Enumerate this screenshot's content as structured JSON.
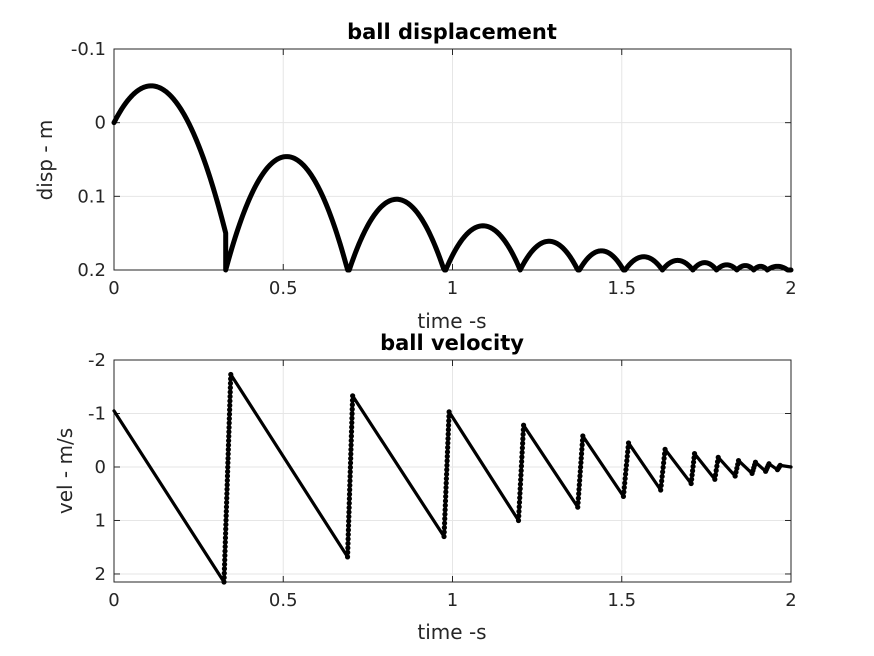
{
  "chart_data": [
    {
      "type": "line",
      "title": "ball displacement",
      "xlabel": "time -s",
      "ylabel": "disp - m",
      "xlim": [
        0,
        2
      ],
      "ylim": [
        -0.1,
        0.2
      ],
      "y_direction": "reversed",
      "grid": true,
      "marker": "dot",
      "color": "#000000",
      "xticks": [
        0,
        0.5,
        1,
        1.5,
        2
      ],
      "xtick_labels": [
        "0",
        "0.5",
        "1",
        "1.5",
        "2"
      ],
      "yticks": [
        -0.1,
        0,
        0.1,
        0.2
      ],
      "ytick_labels": [
        "-0.1",
        "0",
        "0.1",
        "0.2"
      ],
      "bounces": [
        {
          "t0": 0.0,
          "t1": 0.33,
          "y0": 0.0,
          "apex_t": 0.11,
          "apex_y": -0.05
        },
        {
          "t0": 0.33,
          "t1": 0.695,
          "y0": 0.2,
          "apex_t": 0.51,
          "apex_y": 0.046
        },
        {
          "t0": 0.695,
          "t1": 0.98,
          "y0": 0.2,
          "apex_t": 0.835,
          "apex_y": 0.104
        },
        {
          "t0": 0.98,
          "t1": 1.2,
          "y0": 0.2,
          "apex_t": 1.09,
          "apex_y": 0.14
        },
        {
          "t0": 1.2,
          "t1": 1.375,
          "y0": 0.2,
          "apex_t": 1.285,
          "apex_y": 0.161
        },
        {
          "t0": 1.375,
          "t1": 1.51,
          "y0": 0.2,
          "apex_t": 1.44,
          "apex_y": 0.174
        },
        {
          "t0": 1.51,
          "t1": 1.62,
          "y0": 0.2,
          "apex_t": 1.565,
          "apex_y": 0.182
        },
        {
          "t0": 1.62,
          "t1": 1.71,
          "y0": 0.2,
          "apex_t": 1.665,
          "apex_y": 0.187
        },
        {
          "t0": 1.71,
          "t1": 1.78,
          "y0": 0.2,
          "apex_t": 1.745,
          "apex_y": 0.19
        },
        {
          "t0": 1.78,
          "t1": 1.84,
          "y0": 0.2,
          "apex_t": 1.81,
          "apex_y": 0.193
        },
        {
          "t0": 1.84,
          "t1": 1.89,
          "y0": 0.2,
          "apex_t": 1.865,
          "apex_y": 0.194
        },
        {
          "t0": 1.89,
          "t1": 1.93,
          "y0": 0.2,
          "apex_t": 1.91,
          "apex_y": 0.195
        },
        {
          "t0": 1.93,
          "t1": 2.0,
          "y0": 0.2,
          "apex_t": 1.96,
          "apex_y": 0.195
        }
      ]
    },
    {
      "type": "line",
      "title": "ball velocity",
      "xlabel": "time -s",
      "ylabel": "vel - m/s",
      "xlim": [
        0,
        2
      ],
      "ylim": [
        -2,
        2.15
      ],
      "y_direction": "reversed",
      "grid": true,
      "marker": "dot",
      "color": "#000000",
      "xticks": [
        0,
        0.5,
        1,
        1.5,
        2
      ],
      "xtick_labels": [
        "0",
        "0.5",
        "1",
        "1.5",
        "2"
      ],
      "yticks": [
        -2,
        -1,
        0,
        1,
        2
      ],
      "ytick_labels": [
        "-2",
        "-1",
        "0",
        "1",
        "2"
      ],
      "points": [
        [
          0.0,
          -1.05
        ],
        [
          0.325,
          2.15
        ],
        [
          0.345,
          -1.73
        ],
        [
          0.69,
          1.68
        ],
        [
          0.705,
          -1.33
        ],
        [
          0.975,
          1.3
        ],
        [
          0.99,
          -1.03
        ],
        [
          1.195,
          1.0
        ],
        [
          1.21,
          -0.78
        ],
        [
          1.37,
          0.75
        ],
        [
          1.385,
          -0.58
        ],
        [
          1.505,
          0.55
        ],
        [
          1.52,
          -0.45
        ],
        [
          1.615,
          0.43
        ],
        [
          1.628,
          -0.33
        ],
        [
          1.705,
          0.31
        ],
        [
          1.715,
          -0.25
        ],
        [
          1.775,
          0.23
        ],
        [
          1.785,
          -0.18
        ],
        [
          1.835,
          0.17
        ],
        [
          1.845,
          -0.12
        ],
        [
          1.885,
          0.12
        ],
        [
          1.895,
          -0.09
        ],
        [
          1.925,
          0.08
        ],
        [
          1.935,
          -0.06
        ],
        [
          1.96,
          0.05
        ],
        [
          1.968,
          -0.03
        ],
        [
          2.0,
          0.0
        ]
      ]
    }
  ]
}
